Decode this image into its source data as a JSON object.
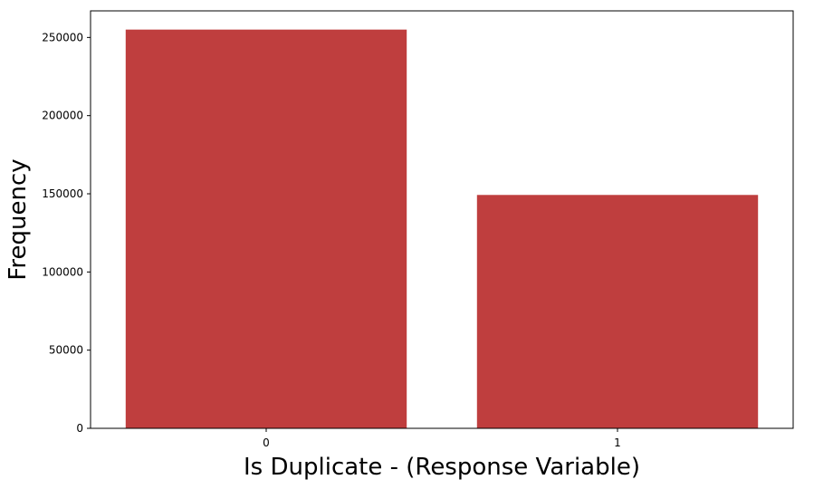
{
  "chart_data": {
    "type": "bar",
    "categories": [
      "0",
      "1"
    ],
    "values": [
      255027,
      149263
    ],
    "title": "",
    "xlabel": "Is Duplicate - (Response Variable)",
    "ylabel": "Frequency",
    "ylim": [
      0,
      267000
    ],
    "yticks": [
      0,
      50000,
      100000,
      150000,
      200000,
      250000
    ],
    "ytick_labels": [
      "0",
      "50000",
      "100000",
      "150000",
      "200000",
      "250000"
    ],
    "bar_color": "#bf3e3e",
    "grid": false,
    "legend": "none"
  }
}
